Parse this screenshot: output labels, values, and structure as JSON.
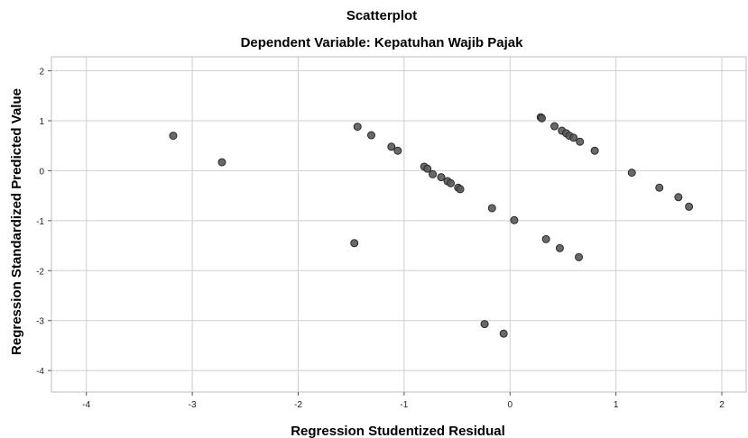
{
  "chart_data": {
    "type": "scatter",
    "title": "Scatterplot",
    "subtitle": "Dependent Variable: Kepatuhan Wajib Pajak",
    "xlabel": "Regression Studentized Residual",
    "ylabel": "Regression Standardized Predicted Value",
    "xlim": [
      -4.33,
      2.23
    ],
    "ylim": [
      -4.43,
      2.28
    ],
    "x_ticks": [
      "-4",
      "-3",
      "-2",
      "-1",
      "0",
      "1",
      "2"
    ],
    "y_ticks": [
      "2",
      "1",
      "0",
      "-1",
      "-2",
      "-3",
      "-4"
    ],
    "grid": true,
    "legend": "none",
    "marker_color": "#595959",
    "series": [
      {
        "points": [
          {
            "x": -3.18,
            "y": 0.7
          },
          {
            "x": -2.72,
            "y": 0.17
          },
          {
            "x": -1.44,
            "y": 0.88
          },
          {
            "x": -1.31,
            "y": 0.71
          },
          {
            "x": -1.12,
            "y": 0.48
          },
          {
            "x": -1.06,
            "y": 0.4
          },
          {
            "x": -1.47,
            "y": -1.45
          },
          {
            "x": -0.81,
            "y": 0.08
          },
          {
            "x": -0.78,
            "y": 0.04
          },
          {
            "x": -0.73,
            "y": -0.07
          },
          {
            "x": -0.65,
            "y": -0.13
          },
          {
            "x": -0.59,
            "y": -0.21
          },
          {
            "x": -0.56,
            "y": -0.25
          },
          {
            "x": -0.49,
            "y": -0.34
          },
          {
            "x": -0.47,
            "y": -0.37
          },
          {
            "x": -0.17,
            "y": -0.75
          },
          {
            "x": 0.04,
            "y": -0.99
          },
          {
            "x": -0.24,
            "y": -3.07
          },
          {
            "x": -0.06,
            "y": -3.26
          },
          {
            "x": 0.29,
            "y": 1.07
          },
          {
            "x": 0.3,
            "y": 1.05
          },
          {
            "x": 0.42,
            "y": 0.89
          },
          {
            "x": 0.49,
            "y": 0.8
          },
          {
            "x": 0.53,
            "y": 0.75
          },
          {
            "x": 0.56,
            "y": 0.7
          },
          {
            "x": 0.6,
            "y": 0.66
          },
          {
            "x": 0.66,
            "y": 0.58
          },
          {
            "x": 0.8,
            "y": 0.4
          },
          {
            "x": 0.34,
            "y": -1.37
          },
          {
            "x": 0.47,
            "y": -1.55
          },
          {
            "x": 0.65,
            "y": -1.73
          },
          {
            "x": 1.15,
            "y": -0.04
          },
          {
            "x": 1.41,
            "y": -0.34
          },
          {
            "x": 1.59,
            "y": -0.53
          },
          {
            "x": 1.69,
            "y": -0.72
          }
        ]
      }
    ]
  }
}
